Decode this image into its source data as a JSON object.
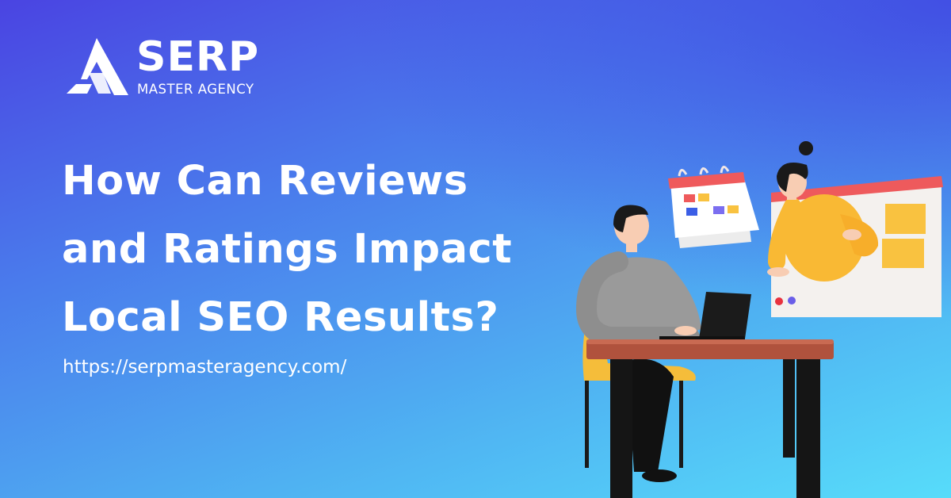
{
  "brand": {
    "name": "SERP",
    "subtitle": "MASTER AGENCY"
  },
  "headline": {
    "lines": [
      "How Can Reviews",
      "and Ratings Impact",
      "Local SEO Results?"
    ]
  },
  "url": "https://serpmasteragency.com/",
  "colors": {
    "background_top": "#4a44e2",
    "background_bottom": "#57dcfa",
    "text": "#ffffff",
    "accent_yellow": "#f9b934",
    "accent_red": "#ef5a5a"
  },
  "illustration": {
    "icons": [
      "calendar-icon",
      "browser-window-icon",
      "laptop-icon"
    ]
  }
}
